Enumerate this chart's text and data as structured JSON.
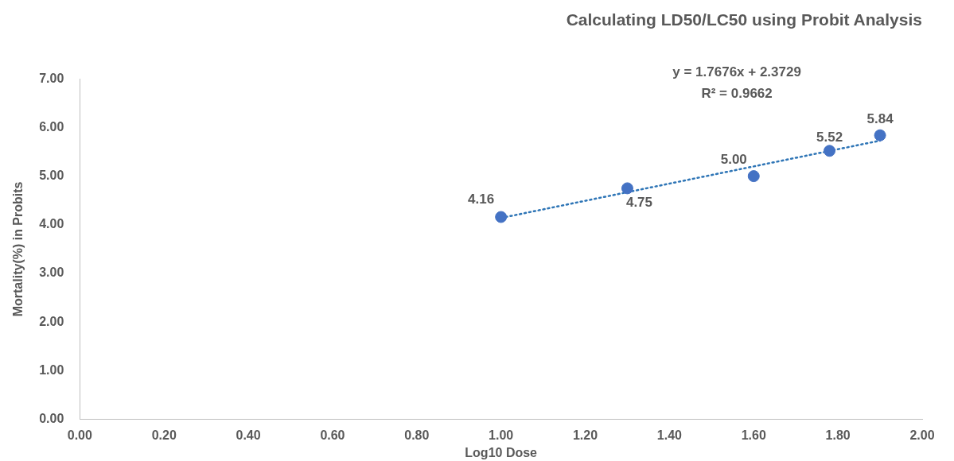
{
  "chart_data": {
    "type": "scatter",
    "title": "Calculating LD50/LC50 using Probit Analysis",
    "xlabel": "Log10 Dose",
    "ylabel": "Mortality(%) in Probits",
    "series": [
      {
        "type": "scatter",
        "color": "#4472c4",
        "x": [
          1.0,
          1.3,
          1.6,
          1.78,
          1.9
        ],
        "values": [
          4.16,
          4.75,
          5.0,
          5.52,
          5.84
        ],
        "value_labels": [
          "4.16",
          "4.75",
          "5.00",
          "5.52",
          "5.84"
        ],
        "marker": "circle"
      },
      {
        "type": "line",
        "color": "#2e75b6",
        "x": [
          1.0,
          1.9
        ],
        "values": [
          4.14,
          5.73
        ],
        "line_style": "dotted",
        "marker": "none"
      }
    ],
    "annotations": [
      "y = 1.7676x + 2.3729",
      "R² = 0.9662"
    ],
    "xlim": [
      0,
      2
    ],
    "xticks": [
      {
        "value": 0,
        "label": "0.00"
      },
      {
        "value": 0.2,
        "label": "0.20"
      },
      {
        "value": 0.4,
        "label": "0.40"
      },
      {
        "value": 0.6,
        "label": "0.60"
      },
      {
        "value": 0.8,
        "label": "0.80"
      },
      {
        "value": 1,
        "label": "1.00"
      },
      {
        "value": 1.2,
        "label": "1.20"
      },
      {
        "value": 1.4,
        "label": "1.40"
      },
      {
        "value": 1.6,
        "label": "1.60"
      },
      {
        "value": 1.8,
        "label": "1.80"
      },
      {
        "value": 2,
        "label": "2.00"
      }
    ],
    "ylim": [
      0,
      7
    ],
    "yticks": [
      {
        "value": 0,
        "label": "0.00"
      },
      {
        "value": 1,
        "label": "1.00"
      },
      {
        "value": 2,
        "label": "2.00"
      },
      {
        "value": 3,
        "label": "3.00"
      },
      {
        "value": 4,
        "label": "4.00"
      },
      {
        "value": 5,
        "label": "5.00"
      },
      {
        "value": 6,
        "label": "6.00"
      },
      {
        "value": 7,
        "label": "7.00"
      }
    ],
    "grid": false,
    "legend": false
  }
}
